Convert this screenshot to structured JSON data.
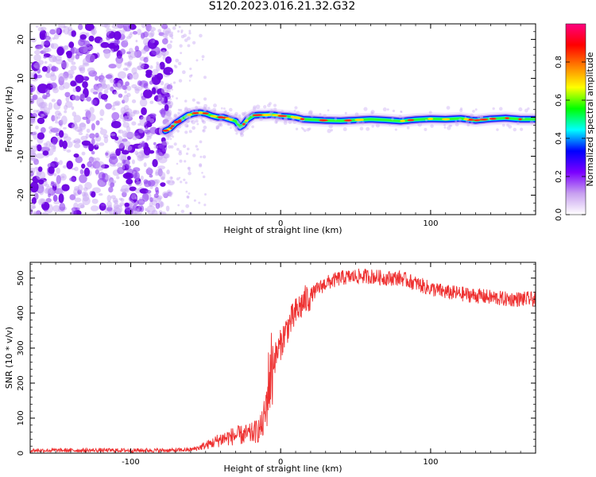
{
  "title": "S120.2023.016.21.32.G32",
  "chart_data": [
    {
      "type": "heatmap",
      "name": "spectrogram",
      "xlabel": "Height of straight line (km)",
      "ylabel": "Frequency (Hz)",
      "xlim": [
        -167,
        170
      ],
      "ylim": [
        -25,
        24
      ],
      "x_ticks": [
        -100,
        0,
        100
      ],
      "y_ticks": [
        -20,
        -10,
        0,
        10,
        20
      ],
      "x_tick_labels": [
        "-100",
        "0",
        "100"
      ],
      "y_tick_labels": [
        "-20",
        "-10",
        "0",
        "10",
        "20"
      ],
      "grid": false,
      "noise_region_x": [
        -167,
        -75
      ],
      "signal_ridge": [
        [
          -77,
          -3.5
        ],
        [
          -74,
          -3.0
        ],
        [
          -70,
          -1.5
        ],
        [
          -66,
          -0.5
        ],
        [
          -62,
          0.5
        ],
        [
          -58,
          1.0
        ],
        [
          -54,
          1.2
        ],
        [
          -50,
          1.0
        ],
        [
          -46,
          0.4
        ],
        [
          -42,
          0.0
        ],
        [
          -38,
          0.0
        ],
        [
          -34,
          -0.5
        ],
        [
          -30,
          -1.0
        ],
        [
          -27,
          -2.5
        ],
        [
          -25,
          -2.0
        ],
        [
          -22,
          -0.5
        ],
        [
          -18,
          0.5
        ],
        [
          -14,
          0.6
        ],
        [
          -10,
          0.6
        ],
        [
          -6,
          0.7
        ],
        [
          -2,
          0.5
        ],
        [
          2,
          0.3
        ],
        [
          6,
          0.2
        ],
        [
          10,
          0.0
        ],
        [
          15,
          -0.5
        ],
        [
          20,
          -0.6
        ],
        [
          30,
          -0.8
        ],
        [
          40,
          -0.9
        ],
        [
          50,
          -0.7
        ],
        [
          60,
          -0.5
        ],
        [
          70,
          -0.7
        ],
        [
          80,
          -1.0
        ],
        [
          90,
          -0.6
        ],
        [
          100,
          -0.4
        ],
        [
          110,
          -0.5
        ],
        [
          120,
          -0.3
        ],
        [
          130,
          -0.8
        ],
        [
          140,
          -0.4
        ],
        [
          150,
          -0.2
        ],
        [
          160,
          -0.5
        ],
        [
          170,
          -0.5
        ]
      ],
      "colorbar": {
        "label": "Normalized spectral amplitude",
        "range": [
          0,
          1
        ],
        "ticks": [
          0.0,
          0.2,
          0.4,
          0.6,
          0.8
        ],
        "tick_labels": [
          "0.0",
          "0.2",
          "0.4",
          "0.6",
          "0.8"
        ],
        "colors": [
          "#ffffff",
          "#c8a0f0",
          "#7b00ff",
          "#0000ff",
          "#00ffff",
          "#00ff00",
          "#ffff00",
          "#ff8000",
          "#ff0000",
          "#ff0080"
        ]
      }
    },
    {
      "type": "line",
      "name": "snr",
      "xlabel": "Height of straight line (km)",
      "ylabel": "SNR (10 * v/v)",
      "xlim": [
        -167,
        170
      ],
      "ylim": [
        0,
        545
      ],
      "x_ticks": [
        -100,
        0,
        100
      ],
      "y_ticks": [
        0,
        100,
        200,
        300,
        400,
        500
      ],
      "x_tick_labels": [
        "-100",
        "0",
        "100"
      ],
      "y_tick_labels": [
        "0",
        "100",
        "200",
        "300",
        "400",
        "500"
      ],
      "grid": false,
      "color": "#ee3030",
      "series": [
        {
          "x": [
            -167,
            -140,
            -110,
            -80,
            -70,
            -60,
            -55,
            -50,
            -45,
            -40,
            -35,
            -30,
            -25,
            -20,
            -15,
            -12,
            -10,
            -8,
            -5,
            -2,
            0,
            3,
            6,
            10,
            15,
            20,
            25,
            30,
            40,
            50,
            60,
            70,
            80,
            90,
            100,
            110,
            120,
            130,
            140,
            150,
            160,
            170
          ],
          "values": [
            8,
            8,
            8,
            8,
            8,
            10,
            15,
            22,
            30,
            40,
            45,
            50,
            52,
            55,
            65,
            80,
            120,
            200,
            260,
            290,
            310,
            345,
            370,
            400,
            430,
            450,
            470,
            485,
            500,
            505,
            505,
            500,
            500,
            485,
            470,
            460,
            455,
            450,
            445,
            440,
            440,
            440
          ]
        }
      ]
    }
  ]
}
